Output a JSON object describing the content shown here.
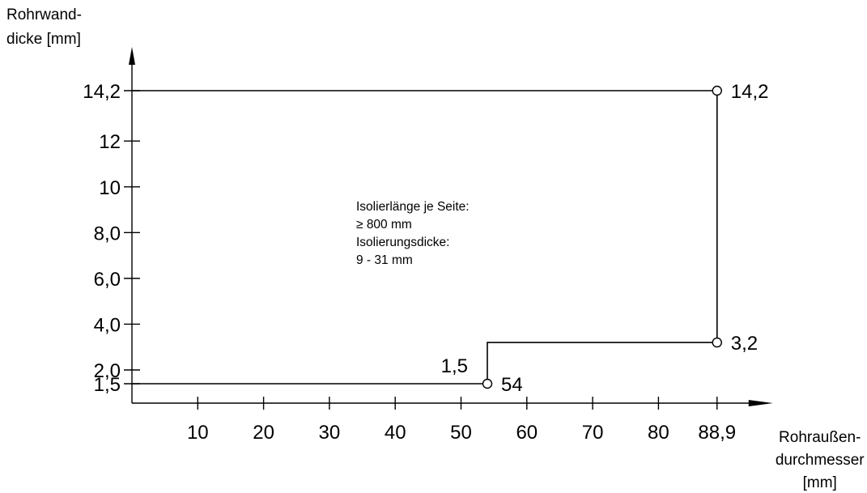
{
  "chart_data": {
    "type": "line",
    "title": "",
    "xlabel": [
      "Rohraußen-",
      "durchmesser",
      "[mm]"
    ],
    "ylabel": [
      "Rohrwand-",
      "dicke [mm]"
    ],
    "x_ticks": [
      {
        "value": 10,
        "label": "10"
      },
      {
        "value": 20,
        "label": "20"
      },
      {
        "value": 30,
        "label": "30"
      },
      {
        "value": 40,
        "label": "40"
      },
      {
        "value": 50,
        "label": "50"
      },
      {
        "value": 60,
        "label": "60"
      },
      {
        "value": 70,
        "label": "70"
      },
      {
        "value": 80,
        "label": "80"
      },
      {
        "value": 88.9,
        "label": "88,9"
      }
    ],
    "y_ticks": [
      {
        "value": 1.5,
        "label": "1,5"
      },
      {
        "value": 2.0,
        "label": "2,0"
      },
      {
        "value": 4.0,
        "label": "4,0"
      },
      {
        "value": 6.0,
        "label": "6,0"
      },
      {
        "value": 8.0,
        "label": "8,0"
      },
      {
        "value": 10,
        "label": "10"
      },
      {
        "value": 12,
        "label": "12"
      },
      {
        "value": 14.2,
        "label": "14,2"
      }
    ],
    "xlim": [
      0,
      98
    ],
    "ylim": [
      0,
      16
    ],
    "series": [
      {
        "x": [
          0,
          54,
          54,
          88.9,
          88.9,
          0
        ],
        "y": [
          1.5,
          1.5,
          3.2,
          3.2,
          14.2,
          14.2
        ]
      }
    ],
    "markers": [
      {
        "x": 54,
        "y": 1.5,
        "label": "54"
      },
      {
        "x": 88.9,
        "y": 3.2,
        "label": "3,2"
      },
      {
        "x": 88.9,
        "y": 14.2,
        "label": "14,2"
      }
    ],
    "point_annotations": [
      {
        "x": 54,
        "y": 1.5,
        "label": "1,5"
      }
    ],
    "note": [
      "Isolierlänge je Seite:",
      "≥  800 mm",
      "Isolierungsdicke:",
      "9 - 31 mm"
    ],
    "grid": false,
    "legend": "none"
  }
}
